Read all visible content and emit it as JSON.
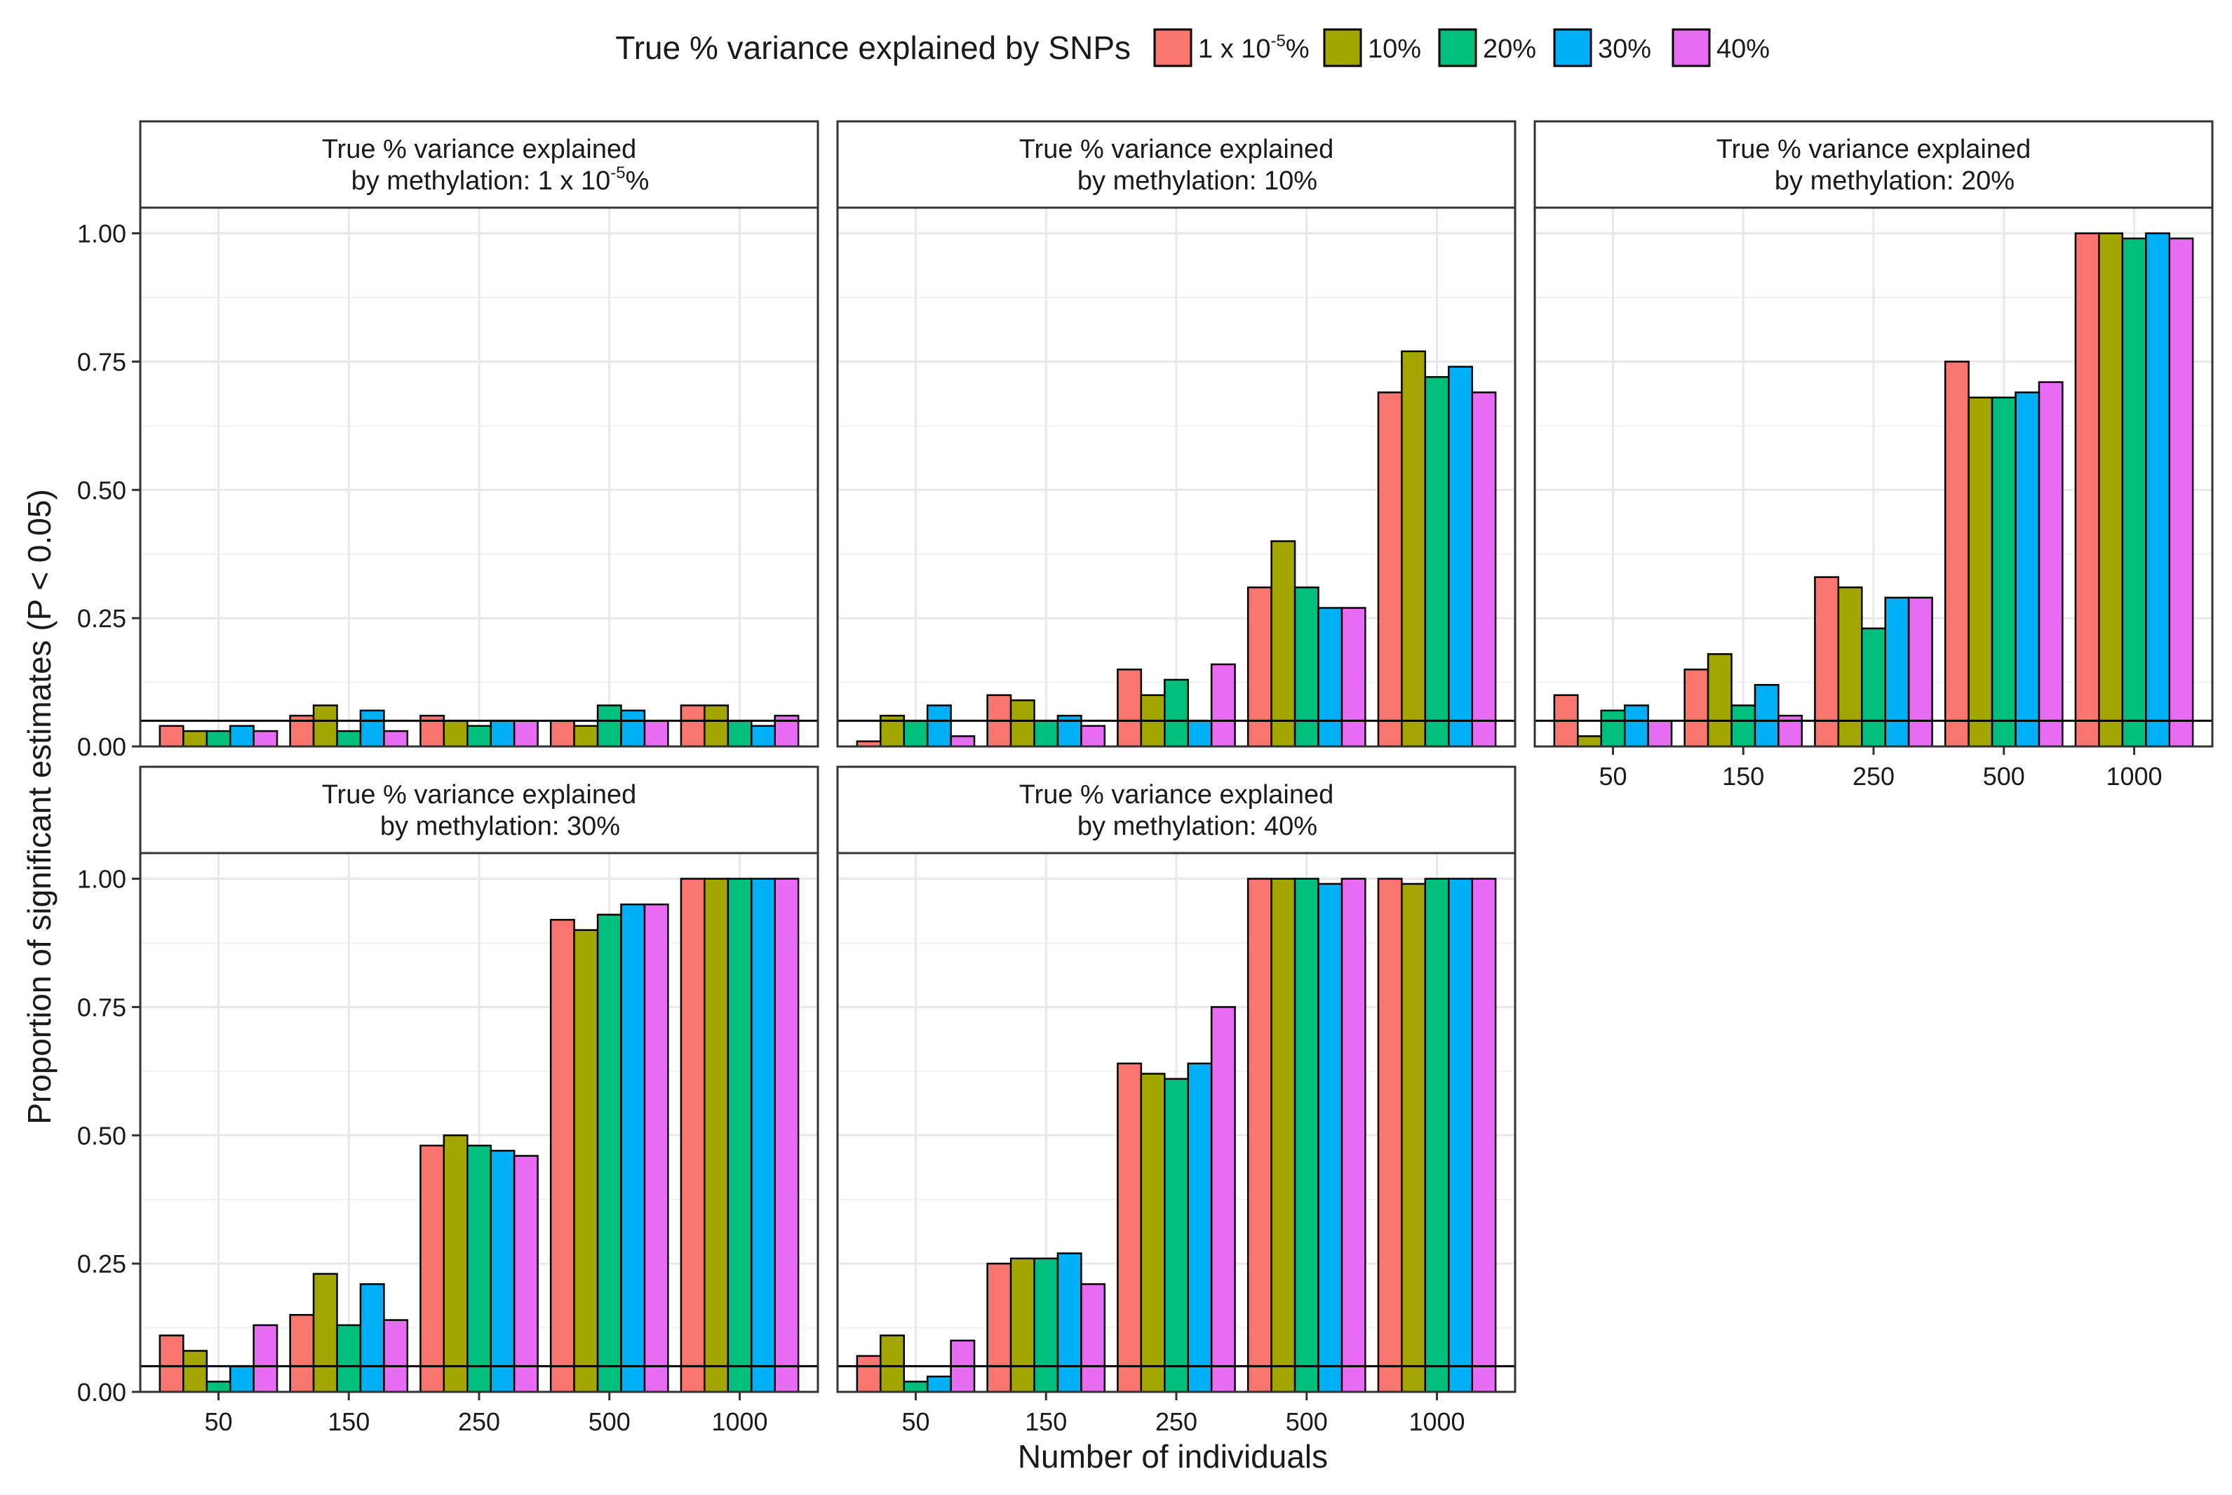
{
  "chart_data": {
    "type": "bar",
    "legend": {
      "title": "True % variance explained by SNPs",
      "position": "top",
      "entries": [
        {
          "label": "1 x 10",
          "sup": "-5",
          "suffix": "%",
          "color": "#F8766D"
        },
        {
          "label": "10%",
          "color": "#A3A500"
        },
        {
          "label": "20%",
          "color": "#00BF7D"
        },
        {
          "label": "30%",
          "color": "#00B0F6"
        },
        {
          "label": "40%",
          "color": "#E76BF3"
        }
      ]
    },
    "xlabel": "Number of individuals",
    "ylabel": "Proportion of significant estimates (P < 0.05)",
    "categories": [
      "50",
      "150",
      "250",
      "500",
      "1000"
    ],
    "ylim": [
      0,
      1.05
    ],
    "yticks": [
      "0.00",
      "0.25",
      "0.50",
      "0.75",
      "1.00"
    ],
    "reference_line": 0.05,
    "grid": true,
    "panels": [
      {
        "title_line1": "True % variance explained",
        "title_line2": "by methylation: 1 x 10",
        "title_sup": "-5",
        "title_suffix": "%",
        "series": [
          {
            "name": "1 x 10^-5%",
            "values": [
              0.04,
              0.06,
              0.06,
              0.05,
              0.08
            ]
          },
          {
            "name": "10%",
            "values": [
              0.03,
              0.08,
              0.05,
              0.04,
              0.08
            ]
          },
          {
            "name": "20%",
            "values": [
              0.03,
              0.03,
              0.04,
              0.08,
              0.05
            ]
          },
          {
            "name": "30%",
            "values": [
              0.04,
              0.07,
              0.05,
              0.07,
              0.04
            ]
          },
          {
            "name": "40%",
            "values": [
              0.03,
              0.03,
              0.05,
              0.05,
              0.06
            ]
          }
        ]
      },
      {
        "title_line1": "True % variance explained",
        "title_line2": "by methylation: 10%",
        "series": [
          {
            "name": "1 x 10^-5%",
            "values": [
              0.01,
              0.1,
              0.15,
              0.31,
              0.69
            ]
          },
          {
            "name": "10%",
            "values": [
              0.06,
              0.09,
              0.1,
              0.4,
              0.77
            ]
          },
          {
            "name": "20%",
            "values": [
              0.05,
              0.05,
              0.13,
              0.31,
              0.72
            ]
          },
          {
            "name": "30%",
            "values": [
              0.08,
              0.06,
              0.05,
              0.27,
              0.74
            ]
          },
          {
            "name": "40%",
            "values": [
              0.02,
              0.04,
              0.16,
              0.27,
              0.69
            ]
          }
        ]
      },
      {
        "title_line1": "True % variance explained",
        "title_line2": "by methylation: 20%",
        "series": [
          {
            "name": "1 x 10^-5%",
            "values": [
              0.1,
              0.15,
              0.33,
              0.75,
              1.0
            ]
          },
          {
            "name": "10%",
            "values": [
              0.02,
              0.18,
              0.31,
              0.68,
              1.0
            ]
          },
          {
            "name": "20%",
            "values": [
              0.07,
              0.08,
              0.23,
              0.68,
              0.99
            ]
          },
          {
            "name": "30%",
            "values": [
              0.08,
              0.12,
              0.29,
              0.69,
              1.0
            ]
          },
          {
            "name": "40%",
            "values": [
              0.05,
              0.06,
              0.29,
              0.71,
              0.99
            ]
          }
        ]
      },
      {
        "title_line1": "True % variance explained",
        "title_line2": "by methylation: 30%",
        "series": [
          {
            "name": "1 x 10^-5%",
            "values": [
              0.11,
              0.15,
              0.48,
              0.92,
              1.0
            ]
          },
          {
            "name": "10%",
            "values": [
              0.08,
              0.23,
              0.5,
              0.9,
              1.0
            ]
          },
          {
            "name": "20%",
            "values": [
              0.02,
              0.13,
              0.48,
              0.93,
              1.0
            ]
          },
          {
            "name": "30%",
            "values": [
              0.05,
              0.21,
              0.47,
              0.95,
              1.0
            ]
          },
          {
            "name": "40%",
            "values": [
              0.13,
              0.14,
              0.46,
              0.95,
              1.0
            ]
          }
        ]
      },
      {
        "title_line1": "True % variance explained",
        "title_line2": "by methylation: 40%",
        "series": [
          {
            "name": "1 x 10^-5%",
            "values": [
              0.07,
              0.25,
              0.64,
              1.0,
              1.0
            ]
          },
          {
            "name": "10%",
            "values": [
              0.11,
              0.26,
              0.62,
              1.0,
              0.99
            ]
          },
          {
            "name": "20%",
            "values": [
              0.02,
              0.26,
              0.61,
              1.0,
              1.0
            ]
          },
          {
            "name": "30%",
            "values": [
              0.03,
              0.27,
              0.64,
              0.99,
              1.0
            ]
          },
          {
            "name": "40%",
            "values": [
              0.1,
              0.21,
              0.75,
              1.0,
              1.0
            ]
          }
        ]
      }
    ]
  }
}
